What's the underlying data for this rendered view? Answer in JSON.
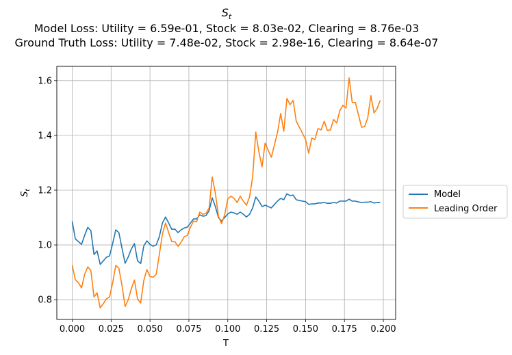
{
  "chart_data": {
    "type": "line",
    "title": "S",
    "title_subscript": "t",
    "subtitle_lines": [
      "Model Loss: Utility = 6.59e-01, Stock = 8.03e-02, Clearing = 8.76e-03",
      "Ground Truth Loss: Utility = 7.48e-02, Stock = 2.98e-16, Clearing = 8.64e-07"
    ],
    "xlabel": "T",
    "ylabel": "S",
    "ylabel_subscript": "t",
    "xlim": [
      -0.0099,
      0.2079
    ],
    "ylim": [
      0.728,
      1.652
    ],
    "xticks": [
      0.0,
      0.025,
      0.05,
      0.075,
      0.1,
      0.125,
      0.15,
      0.175,
      0.2
    ],
    "xtick_labels": [
      "0.000",
      "0.025",
      "0.050",
      "0.075",
      "0.100",
      "0.125",
      "0.150",
      "0.175",
      "0.200"
    ],
    "yticks": [
      0.8,
      1.0,
      1.2,
      1.4,
      1.6
    ],
    "ytick_labels": [
      "0.8",
      "1.0",
      "1.2",
      "1.4",
      "1.6"
    ],
    "grid": true,
    "legend_position": "outside-right",
    "x": [
      0.0,
      0.002,
      0.004,
      0.006,
      0.008,
      0.01,
      0.012,
      0.014,
      0.016,
      0.018,
      0.02,
      0.022,
      0.024,
      0.026,
      0.028,
      0.03,
      0.032,
      0.034,
      0.036,
      0.038,
      0.04,
      0.042,
      0.044,
      0.046,
      0.048,
      0.05,
      0.052,
      0.054,
      0.056,
      0.058,
      0.06,
      0.062,
      0.064,
      0.066,
      0.068,
      0.07,
      0.072,
      0.074,
      0.076,
      0.078,
      0.08,
      0.082,
      0.084,
      0.086,
      0.088,
      0.09,
      0.092,
      0.094,
      0.096,
      0.098,
      0.1,
      0.102,
      0.104,
      0.106,
      0.108,
      0.11,
      0.112,
      0.114,
      0.116,
      0.118,
      0.12,
      0.122,
      0.124,
      0.126,
      0.128,
      0.13,
      0.132,
      0.134,
      0.136,
      0.138,
      0.14,
      0.142,
      0.144,
      0.146,
      0.148,
      0.15,
      0.152,
      0.154,
      0.156,
      0.158,
      0.16,
      0.162,
      0.164,
      0.166,
      0.168,
      0.17,
      0.172,
      0.174,
      0.176,
      0.178,
      0.18,
      0.182,
      0.184,
      0.186,
      0.188,
      0.19,
      0.192,
      0.194,
      0.196,
      0.198
    ],
    "series": [
      {
        "name": "Model",
        "color": "#1f77b4",
        "values": [
          1.086,
          1.022,
          1.012,
          1.002,
          1.035,
          1.064,
          1.052,
          0.965,
          0.978,
          0.929,
          0.942,
          0.955,
          0.96,
          1.005,
          1.055,
          1.045,
          0.988,
          0.933,
          0.956,
          0.985,
          1.005,
          0.942,
          0.932,
          0.996,
          1.015,
          1.002,
          0.995,
          1.0,
          1.03,
          1.08,
          1.102,
          1.08,
          1.057,
          1.058,
          1.045,
          1.055,
          1.062,
          1.065,
          1.08,
          1.095,
          1.095,
          1.11,
          1.105,
          1.107,
          1.125,
          1.172,
          1.14,
          1.1,
          1.087,
          1.1,
          1.113,
          1.12,
          1.117,
          1.112,
          1.12,
          1.112,
          1.102,
          1.112,
          1.135,
          1.175,
          1.16,
          1.14,
          1.145,
          1.14,
          1.135,
          1.148,
          1.16,
          1.17,
          1.165,
          1.187,
          1.18,
          1.182,
          1.165,
          1.162,
          1.16,
          1.158,
          1.148,
          1.15,
          1.15,
          1.153,
          1.153,
          1.155,
          1.152,
          1.152,
          1.155,
          1.153,
          1.16,
          1.16,
          1.16,
          1.167,
          1.16,
          1.16,
          1.157,
          1.155,
          1.156,
          1.156,
          1.158,
          1.153,
          1.155,
          1.155
        ]
      },
      {
        "name": "Leading Order",
        "color": "#ff7f0e",
        "values": [
          0.926,
          0.873,
          0.862,
          0.843,
          0.893,
          0.92,
          0.906,
          0.81,
          0.825,
          0.77,
          0.786,
          0.803,
          0.81,
          0.862,
          0.925,
          0.915,
          0.852,
          0.775,
          0.8,
          0.84,
          0.872,
          0.803,
          0.788,
          0.87,
          0.91,
          0.885,
          0.882,
          0.893,
          0.965,
          1.04,
          1.08,
          1.045,
          1.012,
          1.012,
          0.995,
          1.01,
          1.03,
          1.035,
          1.065,
          1.087,
          1.085,
          1.12,
          1.112,
          1.115,
          1.135,
          1.248,
          1.19,
          1.105,
          1.078,
          1.11,
          1.168,
          1.178,
          1.17,
          1.155,
          1.178,
          1.16,
          1.145,
          1.175,
          1.25,
          1.412,
          1.34,
          1.285,
          1.372,
          1.345,
          1.32,
          1.365,
          1.412,
          1.48,
          1.415,
          1.535,
          1.512,
          1.528,
          1.452,
          1.43,
          1.408,
          1.385,
          1.335,
          1.39,
          1.385,
          1.425,
          1.42,
          1.452,
          1.418,
          1.42,
          1.458,
          1.445,
          1.49,
          1.51,
          1.5,
          1.61,
          1.52,
          1.52,
          1.475,
          1.43,
          1.432,
          1.465,
          1.545,
          1.482,
          1.498,
          1.528
        ]
      }
    ]
  }
}
